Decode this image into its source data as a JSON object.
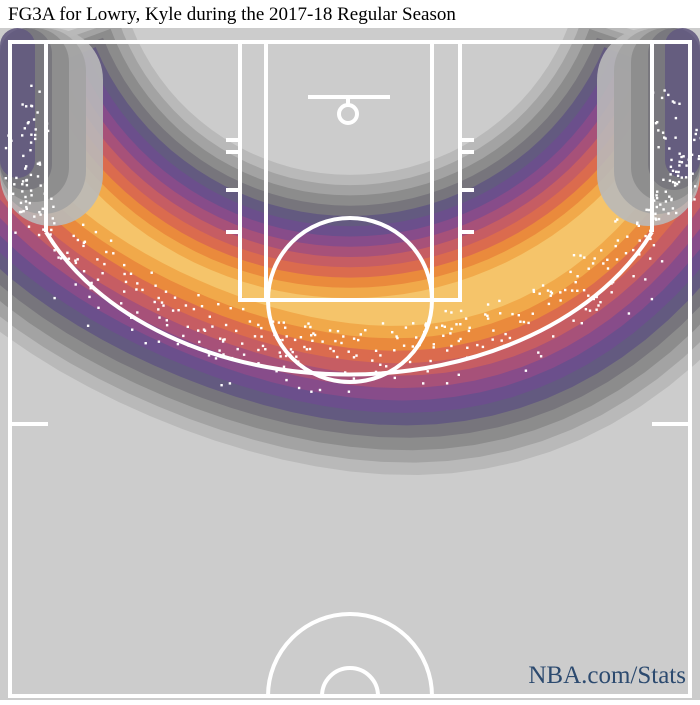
{
  "chart_data": {
    "type": "heatmap",
    "title": "FG3A for Lowry, Kyle during the 2017-18 Regular Season",
    "subtitle": "",
    "xlabel": "",
    "ylabel": "",
    "description_of_encoding": "shot-location density (kernel density) of three-point field goal attempts, with individual attempts as white dots",
    "density_colors": [
      "#cccccc",
      "#b9b9b9",
      "#a3a3a3",
      "#8c8c8c",
      "#77757c",
      "#635a80",
      "#6b4f8c",
      "#874c8a",
      "#a75179",
      "#c65d63",
      "#db6b4e",
      "#ea8a3c",
      "#f1a94a",
      "#f5c46a"
    ],
    "density_peaks": [
      {
        "zone": "left corner",
        "level": 0.42
      },
      {
        "zone": "right corner",
        "level": 0.4
      },
      {
        "zone": "left wing",
        "level": 0.78
      },
      {
        "zone": "top of key",
        "level": 0.95
      },
      {
        "zone": "right wing",
        "level": 0.92
      }
    ],
    "court_background": "#cccccc",
    "court_line_color": "#ffffff",
    "shot_marker_color": "#ffffff"
  },
  "watermark": "NBA.com/Stats"
}
